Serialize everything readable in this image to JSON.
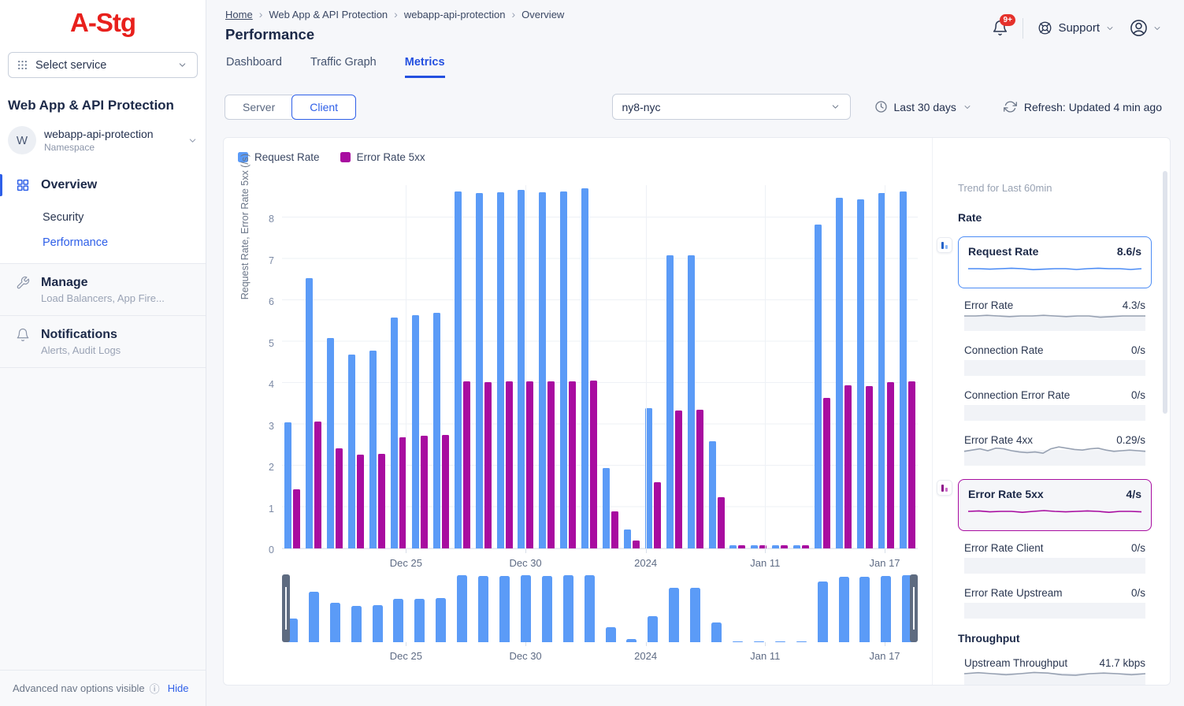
{
  "sidebar": {
    "logo": "A-Stg",
    "select_service": {
      "label": "Select service"
    },
    "section_title": "Web App & API Protection",
    "namespace": {
      "avatar": "W",
      "name": "webapp-api-protection",
      "type": "Namespace"
    },
    "nav": {
      "overview": {
        "label": "Overview"
      },
      "overview_children": [
        {
          "label": "Security"
        },
        {
          "label": "Performance",
          "active": true
        }
      ],
      "manage": {
        "label": "Manage",
        "subtitle": "Load Balancers, App Fire..."
      },
      "notifications": {
        "label": "Notifications",
        "subtitle": "Alerts, Audit Logs"
      }
    },
    "footer": {
      "text": "Advanced nav options visible",
      "info_glyph": "ⓘ",
      "action": "Hide"
    }
  },
  "header": {
    "breadcrumb": [
      "Home",
      "Web App & API Protection",
      "webapp-api-protection",
      "Overview"
    ],
    "crumb_sep": "›",
    "title": "Performance",
    "notifications_badge": "9+",
    "support_label": "Support"
  },
  "tabs": [
    {
      "label": "Dashboard"
    },
    {
      "label": "Traffic Graph"
    },
    {
      "label": "Metrics",
      "active": true
    }
  ],
  "controls": {
    "mode_toggle": [
      {
        "label": "Server"
      },
      {
        "label": "Client",
        "active": true
      }
    ],
    "site_selector": "ny8-nyc",
    "time_range": "Last 30 days",
    "refresh": "Refresh: Updated 4 min ago"
  },
  "chart_data": {
    "type": "bar",
    "title": "",
    "xlabel": "",
    "ylabel": "Request Rate, Error Rate 5xx (/s)",
    "ylim": [
      0,
      8.8
    ],
    "yticks": [
      0,
      1,
      2,
      3,
      4,
      5,
      6,
      7,
      8
    ],
    "grid": true,
    "x_tick_labels": [
      "Dec 25",
      "Dec 30",
      "2024",
      "Jan 11",
      "Jan 17"
    ],
    "x_tick_positions_pct": [
      19.5,
      38.3,
      57.2,
      76.0,
      94.8
    ],
    "legend": [
      {
        "name": "Request Rate",
        "color": "#5b9bf7"
      },
      {
        "name": "Error Rate 5xx",
        "color": "#a80ca0"
      }
    ],
    "series": [
      {
        "name": "Request Rate",
        "values": [
          3.05,
          6.55,
          5.1,
          4.7,
          4.8,
          5.6,
          5.65,
          5.7,
          8.65,
          8.6,
          8.62,
          8.68,
          8.63,
          8.65,
          8.72,
          1.95,
          0.45,
          3.4,
          7.1,
          7.1,
          2.6,
          0.07,
          0.07,
          0.07,
          0.07,
          7.85,
          8.5,
          8.45,
          8.6,
          8.65
        ]
      },
      {
        "name": "Error Rate 5xx",
        "values": [
          1.43,
          3.07,
          2.43,
          2.27,
          2.3,
          2.7,
          2.73,
          2.75,
          4.05,
          4.03,
          4.04,
          4.05,
          4.04,
          4.05,
          4.06,
          0.9,
          0.2,
          1.6,
          3.35,
          3.36,
          1.25,
          0.07,
          0.07,
          0.07,
          0.07,
          3.65,
          3.95,
          3.93,
          4.02,
          4.05
        ]
      }
    ],
    "minimap_series": "Request Rate"
  },
  "trend_panel": {
    "title": "Trend for Last 60min",
    "sections": [
      {
        "title": "Rate",
        "metrics": [
          {
            "label": "Request Rate",
            "value": "8.6/s",
            "selected": true,
            "color": "#4c8cf5",
            "icon_colors": [
              "#2563c9",
              "#8ab8f8"
            ],
            "trend": [
              0.5,
              0.5,
              0.55,
              0.5,
              0.45,
              0.5,
              0.6,
              0.55,
              0.5,
              0.5,
              0.58,
              0.5,
              0.45,
              0.5,
              0.5,
              0.58,
              0.5
            ]
          },
          {
            "label": "Error Rate",
            "value": "4.3/s",
            "trend": [
              0.5,
              0.5,
              0.45,
              0.5,
              0.55,
              0.5,
              0.5,
              0.45,
              0.5,
              0.55,
              0.5,
              0.5,
              0.6,
              0.55,
              0.5,
              0.5,
              0.5
            ]
          },
          {
            "label": "Connection Rate",
            "value": "0/s"
          },
          {
            "label": "Connection Error Rate",
            "value": "0/s"
          },
          {
            "label": "Error Rate 4xx",
            "value": "0.29/s",
            "trend": [
              0.55,
              0.45,
              0.35,
              0.5,
              0.3,
              0.35,
              0.5,
              0.6,
              0.65,
              0.6,
              0.7,
              0.35,
              0.2,
              0.3,
              0.4,
              0.45,
              0.35,
              0.3,
              0.45,
              0.55,
              0.5,
              0.45,
              0.5,
              0.55
            ]
          },
          {
            "label": "Error Rate 5xx",
            "value": "4/s",
            "selected": true,
            "color": "#a80ca0",
            "tint": true,
            "icon_colors": [
              "#8e0b8a",
              "#ca6bc6"
            ],
            "trend": [
              0.5,
              0.45,
              0.55,
              0.5,
              0.5,
              0.6,
              0.5,
              0.42,
              0.5,
              0.55,
              0.5,
              0.45,
              0.5,
              0.6,
              0.5,
              0.5,
              0.55
            ]
          },
          {
            "label": "Error Rate Client",
            "value": "0/s"
          },
          {
            "label": "Error Rate Upstream",
            "value": "0/s"
          }
        ]
      },
      {
        "title": "Throughput",
        "metrics": [
          {
            "label": "Upstream Throughput",
            "value": "41.7 kbps",
            "trend": [
              0.5,
              0.42,
              0.5,
              0.58,
              0.5,
              0.4,
              0.45,
              0.58,
              0.62,
              0.5,
              0.45,
              0.5,
              0.58,
              0.5
            ]
          }
        ]
      }
    ]
  }
}
